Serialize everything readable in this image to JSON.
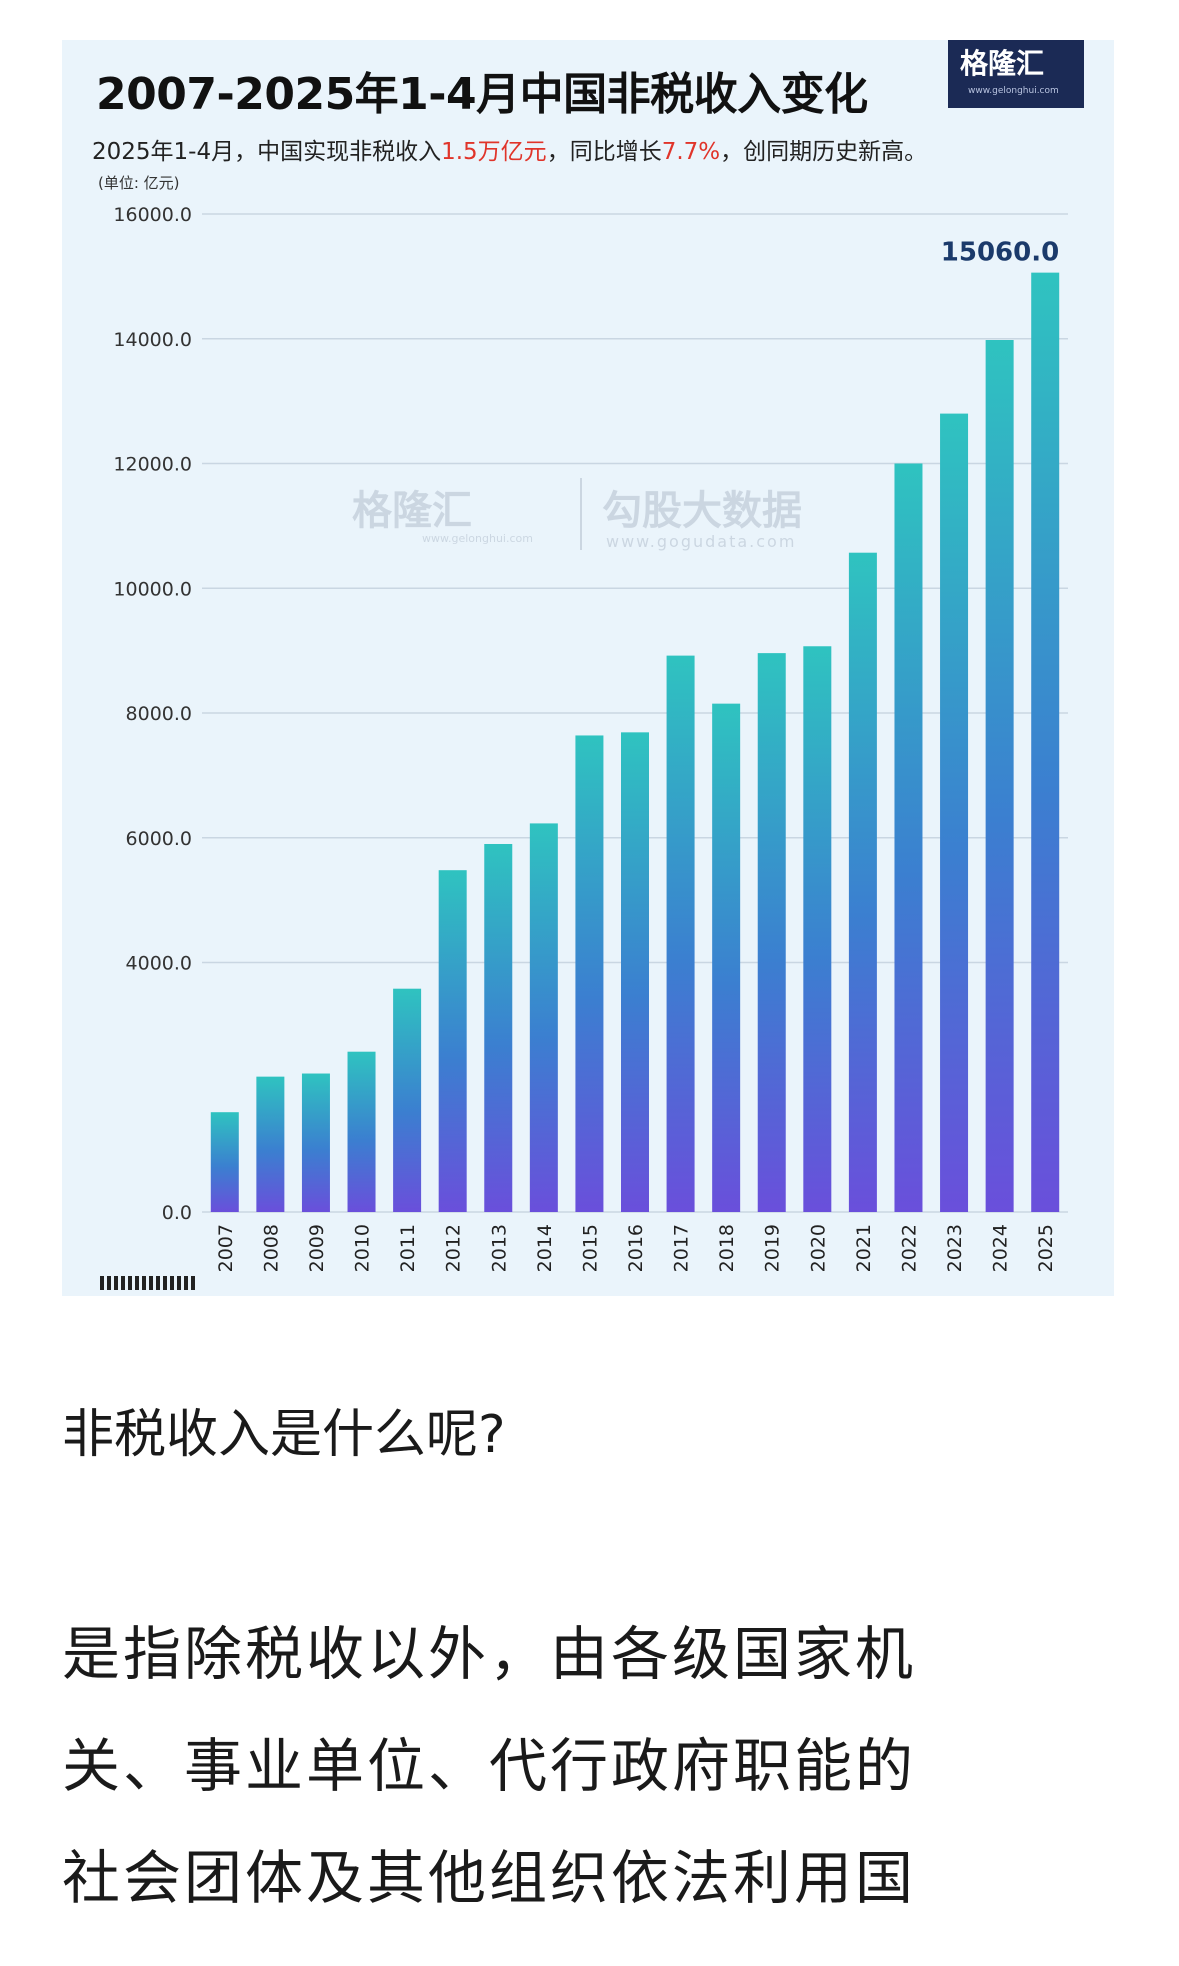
{
  "header": {
    "title": "2007-2025年1-4月中国非税收入变化",
    "subtitle_prefix": "2025年1-4月，中国实现非税收入",
    "subtitle_hl1": "1.5万亿元",
    "subtitle_mid": "，同比增长",
    "subtitle_hl2": "7.7%",
    "subtitle_suffix": "，创同期历史新高。",
    "unit": "(单位: 亿元)"
  },
  "logo": {
    "text": "格隆汇",
    "url": "www.gelonghui.com"
  },
  "watermark": {
    "left_text": "格隆汇",
    "left_url": "www.gelonghui.com",
    "right_text": "勾股大数据",
    "right_url": "www.gogudata.com"
  },
  "colors": {
    "bar_top": "#2fc3c0",
    "bar_mid": "#3b7fd0",
    "bar_bottom": "#6a4fdb",
    "grid": "#c9d6e2",
    "highlight": "#e0342a",
    "value_label": "#1b3a6b"
  },
  "chart_data": {
    "type": "bar",
    "title": "2007-2025年1-4月中国非税收入变化",
    "ylabel": "(单位: 亿元)",
    "xlabel": "",
    "ylim": [
      0,
      16000
    ],
    "yticks": [
      "0.0",
      "4000.0",
      "6000.0",
      "8000.0",
      "10000.0",
      "12000.0",
      "14000.0",
      "16000.0"
    ],
    "ytick_values": [
      0,
      4000,
      6000,
      8000,
      10000,
      12000,
      14000,
      16000
    ],
    "grid": true,
    "categories": [
      "2007",
      "2008",
      "2009",
      "2010",
      "2011",
      "2012",
      "2013",
      "2014",
      "2015",
      "2016",
      "2017",
      "2018",
      "2019",
      "2020",
      "2021",
      "2022",
      "2023",
      "2024",
      "2025"
    ],
    "values": [
      1600,
      2170,
      2220,
      2570,
      3580,
      5480,
      5900,
      6230,
      7640,
      7690,
      8920,
      8150,
      8960,
      9070,
      10570,
      12000,
      12800,
      13980,
      15060
    ],
    "data_labels": [
      {
        "index": 18,
        "text": "15060.0"
      }
    ]
  },
  "article": {
    "heading": "非税收入是什么呢?",
    "lines": [
      "是指除税收以外，由各级国家机",
      "关、事业单位、代行政府职能的",
      "社会团体及其他组织依法利用国"
    ]
  }
}
